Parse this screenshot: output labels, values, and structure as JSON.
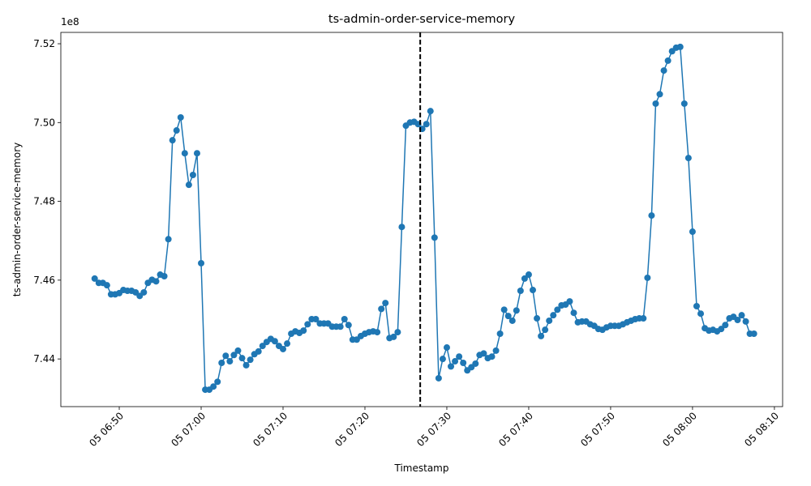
{
  "chart_data": {
    "type": "line",
    "title": "ts-admin-order-service-memory",
    "x_label": "Timestamp",
    "y_label": "ts-admin-order-service-memory",
    "y_offset_label": "1e8",
    "color": "#1f77b4",
    "x": [
      "05 06:47:00",
      "05 06:47:30",
      "05 06:48:00",
      "05 06:48:30",
      "05 06:49:00",
      "05 06:49:30",
      "05 06:50:00",
      "05 06:50:30",
      "05 06:51:00",
      "05 06:51:30",
      "05 06:52:00",
      "05 06:52:30",
      "05 06:53:00",
      "05 06:53:30",
      "05 06:54:00",
      "05 06:54:30",
      "05 06:55:00",
      "05 06:55:30",
      "05 06:56:00",
      "05 06:56:30",
      "05 06:57:00",
      "05 06:57:30",
      "05 06:58:00",
      "05 06:58:30",
      "05 06:59:00",
      "05 06:59:30",
      "05 07:00:00",
      "05 07:00:30",
      "05 07:01:00",
      "05 07:01:30",
      "05 07:02:00",
      "05 07:02:30",
      "05 07:03:00",
      "05 07:03:30",
      "05 07:04:00",
      "05 07:04:30",
      "05 07:05:00",
      "05 07:05:30",
      "05 07:06:00",
      "05 07:06:30",
      "05 07:07:00",
      "05 07:07:30",
      "05 07:08:00",
      "05 07:08:30",
      "05 07:09:00",
      "05 07:09:30",
      "05 07:10:00",
      "05 07:10:30",
      "05 07:11:00",
      "05 07:11:30",
      "05 07:12:00",
      "05 07:12:30",
      "05 07:13:00",
      "05 07:13:30",
      "05 07:14:00",
      "05 07:14:30",
      "05 07:15:00",
      "05 07:15:30",
      "05 07:16:00",
      "05 07:16:30",
      "05 07:17:00",
      "05 07:17:30",
      "05 07:18:00",
      "05 07:18:30",
      "05 07:19:00",
      "05 07:19:30",
      "05 07:20:00",
      "05 07:20:30",
      "05 07:21:00",
      "05 07:21:30",
      "05 07:22:00",
      "05 07:22:30",
      "05 07:23:00",
      "05 07:23:30",
      "05 07:24:00",
      "05 07:24:30",
      "05 07:25:00",
      "05 07:25:30",
      "05 07:26:00",
      "05 07:26:30",
      "05 07:27:00",
      "05 07:27:30",
      "05 07:28:00",
      "05 07:28:30",
      "05 07:29:00",
      "05 07:29:30",
      "05 07:30:00",
      "05 07:30:30",
      "05 07:31:00",
      "05 07:31:30",
      "05 07:32:00",
      "05 07:32:30",
      "05 07:33:00",
      "05 07:33:30",
      "05 07:34:00",
      "05 07:34:30",
      "05 07:35:00",
      "05 07:35:30",
      "05 07:36:00",
      "05 07:36:30",
      "05 07:37:00",
      "05 07:37:30",
      "05 07:38:00",
      "05 07:38:30",
      "05 07:39:00",
      "05 07:39:30",
      "05 07:40:00",
      "05 07:40:30",
      "05 07:41:00",
      "05 07:41:30",
      "05 07:42:00",
      "05 07:42:30",
      "05 07:43:00",
      "05 07:43:30",
      "05 07:44:00",
      "05 07:44:30",
      "05 07:45:00",
      "05 07:45:30",
      "05 07:46:00",
      "05 07:46:30",
      "05 07:47:00",
      "05 07:47:30",
      "05 07:48:00",
      "05 07:48:30",
      "05 07:49:00",
      "05 07:49:30",
      "05 07:50:00",
      "05 07:50:30",
      "05 07:51:00",
      "05 07:51:30",
      "05 07:52:00",
      "05 07:52:30",
      "05 07:53:00",
      "05 07:53:30",
      "05 07:54:00",
      "05 07:54:30",
      "05 07:55:00",
      "05 07:55:30",
      "05 07:56:00",
      "05 07:56:30",
      "05 07:57:00",
      "05 07:57:30",
      "05 07:58:00",
      "05 07:58:30",
      "05 07:59:00",
      "05 07:59:30",
      "05 08:00:00",
      "05 08:00:30",
      "05 08:01:00",
      "05 08:01:30",
      "05 08:02:00",
      "05 08:02:30",
      "05 08:03:00",
      "05 08:03:30",
      "05 08:04:00",
      "05 08:04:30",
      "05 08:05:00",
      "05 08:05:30",
      "05 08:06:00",
      "05 08:06:30",
      "05 08:07:00",
      "05 08:07:30"
    ],
    "values": [
      7.4604,
      7.4593,
      7.4593,
      7.4587,
      7.4564,
      7.4564,
      7.4567,
      7.4575,
      7.4573,
      7.4573,
      7.4569,
      7.456,
      7.4569,
      7.4593,
      7.4601,
      7.4597,
      7.4614,
      7.461,
      7.4704,
      7.4955,
      7.498,
      7.5013,
      7.4922,
      7.4842,
      7.4867,
      7.4922,
      7.4643,
      7.4322,
      7.4322,
      7.433,
      7.4342,
      7.439,
      7.4408,
      7.4394,
      7.441,
      7.4421,
      7.4402,
      7.4384,
      7.4398,
      7.4412,
      7.4419,
      7.4433,
      7.4443,
      7.4451,
      7.4445,
      7.4433,
      7.4425,
      7.4439,
      7.4464,
      7.447,
      7.4466,
      7.4472,
      7.4488,
      7.4501,
      7.4501,
      7.449,
      7.449,
      7.449,
      7.4482,
      7.4482,
      7.4482,
      7.4501,
      7.4486,
      7.4449,
      7.4449,
      7.4458,
      7.4464,
      7.4468,
      7.447,
      7.4468,
      7.4527,
      7.4542,
      7.4453,
      7.4456,
      7.4468,
      7.4735,
      7.4992,
      7.5,
      7.5002,
      7.4996,
      7.4984,
      7.4996,
      7.5029,
      7.4708,
      7.4351,
      7.44,
      7.4429,
      7.4381,
      7.4394,
      7.4406,
      7.439,
      7.4371,
      7.4379,
      7.4388,
      7.441,
      7.4414,
      7.4402,
      7.4406,
      7.4421,
      7.4464,
      7.4525,
      7.4509,
      7.4497,
      7.4523,
      7.4573,
      7.4604,
      7.4614,
      7.4575,
      7.4503,
      7.4458,
      7.4474,
      7.4497,
      7.4511,
      7.4525,
      7.4536,
      7.4538,
      7.4546,
      7.4517,
      7.4493,
      7.4495,
      7.4495,
      7.4488,
      7.4484,
      7.4476,
      7.4474,
      7.448,
      7.4484,
      7.4484,
      7.4484,
      7.4488,
      7.4493,
      7.4497,
      7.4501,
      7.4503,
      7.4503,
      7.4606,
      7.4764,
      7.5048,
      7.5072,
      7.5132,
      7.5157,
      7.5181,
      7.519,
      7.5192,
      7.5048,
      7.491,
      7.4723,
      7.4534,
      7.4515,
      7.4478,
      7.4472,
      7.4474,
      7.447,
      7.4476,
      7.4486,
      7.4503,
      7.4507,
      7.4499,
      7.4511,
      7.4495,
      7.4464,
      7.4464
    ],
    "xlim": [
      "05 06:42:52",
      "05 08:11:00"
    ],
    "xticks": [
      "05 06:50",
      "05 07:00",
      "05 07:10",
      "05 07:20",
      "05 07:30",
      "05 07:40",
      "05 07:50",
      "05 08:00",
      "05 08:10"
    ],
    "ylim": [
      7.4279,
      7.52288
    ],
    "yticks": [
      7.44,
      7.46,
      7.48,
      {
        "value": 7.5,
        "label": "7.50"
      },
      7.52
    ],
    "vline": {
      "x": "05 07:26:45",
      "color": "#000000",
      "style": "dashed"
    }
  }
}
